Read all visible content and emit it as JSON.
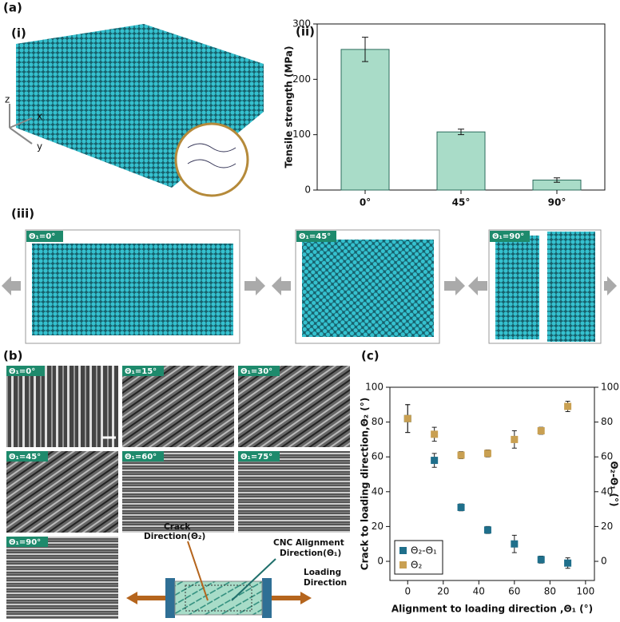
{
  "panel_labels": [
    "(a)",
    "(i)",
    "(ii)",
    "(iii)",
    "(b)",
    "(c)"
  ],
  "axes_triad": [
    "z",
    "x",
    "y"
  ],
  "sim_tags": [
    "Θ₁=0°",
    "Θ₁=45°",
    "Θ₁=90°"
  ],
  "micrograph_tags": [
    "Θ₁=0°",
    "Θ₁=15°",
    "Θ₁=30°",
    "Θ₁=45°",
    "Θ₁=60°",
    "Θ₁=75°",
    "Θ₁=90°"
  ],
  "schematic": {
    "crack": [
      "Crack",
      "Direction(Θ₂)"
    ],
    "alignment": [
      "CNC Alignment",
      "Direction(Θ₁)"
    ],
    "loading": [
      "Loading",
      "Direction"
    ]
  },
  "chart_data": [
    {
      "type": "bar",
      "ylabel": "Tensile strength (MPa)",
      "categories": [
        "0°",
        "45°",
        "90°"
      ],
      "values": [
        254,
        105,
        18
      ],
      "errors": [
        22,
        5,
        4
      ],
      "color": "#a9dcc8",
      "ylim": [
        0,
        300
      ],
      "yticks": [
        0,
        100,
        200,
        300
      ]
    },
    {
      "type": "scatter",
      "xlabel": "Alignment to loading direction ,Θ₁ (°)",
      "ylabel": "Crack  to loading direction,Θ₂ (°)",
      "y2label": "Θ₂-Θ₁ (°)",
      "x": [
        0,
        15,
        30,
        45,
        60,
        75,
        90
      ],
      "series": [
        {
          "name": "Θ₂-Θ₁",
          "color": "#1f6f8b",
          "axis": "y2",
          "values": [
            82,
            58,
            31,
            18,
            10,
            1,
            -1
          ],
          "errors": [
            8,
            4,
            2,
            2,
            5,
            2,
            3
          ]
        },
        {
          "name": "Θ₂",
          "color": "#c9a052",
          "values": [
            82,
            73,
            61,
            62,
            70,
            75,
            89
          ],
          "errors": [
            8,
            4,
            2,
            2,
            5,
            2,
            3
          ]
        }
      ],
      "xlim": [
        -10,
        105
      ],
      "ylim": [
        -11,
        100
      ],
      "y2lim": [
        -11,
        100
      ],
      "xticks": [
        0,
        20,
        40,
        60,
        80,
        100
      ],
      "yticks": [
        0,
        20,
        40,
        60,
        80,
        100
      ],
      "y2ticks": [
        0,
        20,
        40,
        60,
        80,
        100
      ],
      "legend": "lower left"
    }
  ]
}
